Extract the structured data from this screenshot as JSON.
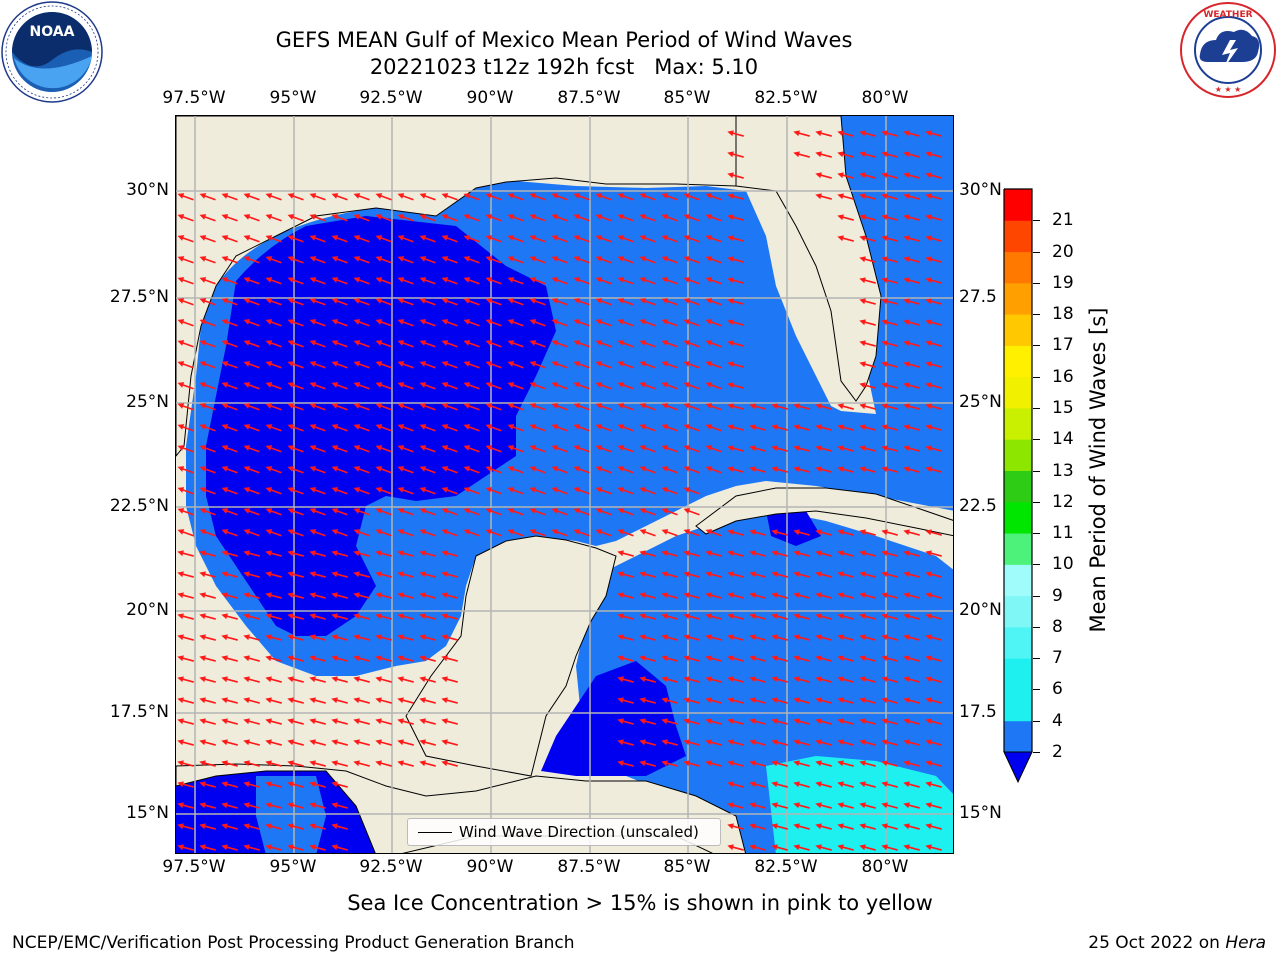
{
  "header": {
    "title_line1": "GEFS MEAN Gulf of Mexico Mean Period of Wind Waves",
    "title_line2": "20221023 t12z 192h fcst   Max: 5.10"
  },
  "logos": {
    "left": "NOAA",
    "left_ring_text": "NATIONAL OCEANIC AND ATMOSPHERIC ADMINISTRATION · U.S. DEPARTMENT OF COMMERCE",
    "right_ring_text": "NATIONAL WEATHER SERVICE"
  },
  "map": {
    "lon_labels": [
      "97.5°W",
      "95°W",
      "92.5°W",
      "90°W",
      "87.5°W",
      "85°W",
      "82.5°W",
      "80°W"
    ],
    "lat_labels_left": [
      "30°N",
      "27.5°N",
      "25°N",
      "22.5°N",
      "20°N",
      "17.5°N",
      "15°N"
    ],
    "lat_labels_right": [
      "30°N",
      "27.5",
      "25°N",
      "22.5",
      "20°N",
      "17.5",
      "15°N"
    ],
    "colors": {
      "land": "#efecdc",
      "dark_blue": "#0000f0",
      "med_blue": "#1e78f5",
      "cyan": "#1ef0f0",
      "arrow": "#ff1a1a",
      "grid": "#b4b4b4"
    },
    "legend_text": "Wind Wave Direction (unscaled)"
  },
  "colorbar": {
    "label": "Mean Period of Wind Waves [s]",
    "ticks": [
      "2",
      "4",
      "6",
      "7",
      "8",
      "9",
      "10",
      "11",
      "12",
      "13",
      "14",
      "15",
      "16",
      "17",
      "18",
      "19",
      "20",
      "21"
    ],
    "colors": [
      "#1e78f5",
      "#1ef0f0",
      "#1ef0f0",
      "#4ff4f4",
      "#80f7f7",
      "#a0fbfb",
      "#4cf27a",
      "#00e600",
      "#2ecc14",
      "#8ce600",
      "#c8f000",
      "#f0f000",
      "#fff000",
      "#ffc800",
      "#ffa000",
      "#ff7800",
      "#ff4600",
      "#ff0000"
    ],
    "extend_color": "#0000f0"
  },
  "notes": {
    "sea_ice": "Sea Ice Concentration > 15% is shown in pink to yellow"
  },
  "footer": {
    "left": "NCEP/EMC/Verification Post Processing Product Generation Branch",
    "right_prefix": "25 Oct 2022 on ",
    "right_host": "Hera"
  }
}
